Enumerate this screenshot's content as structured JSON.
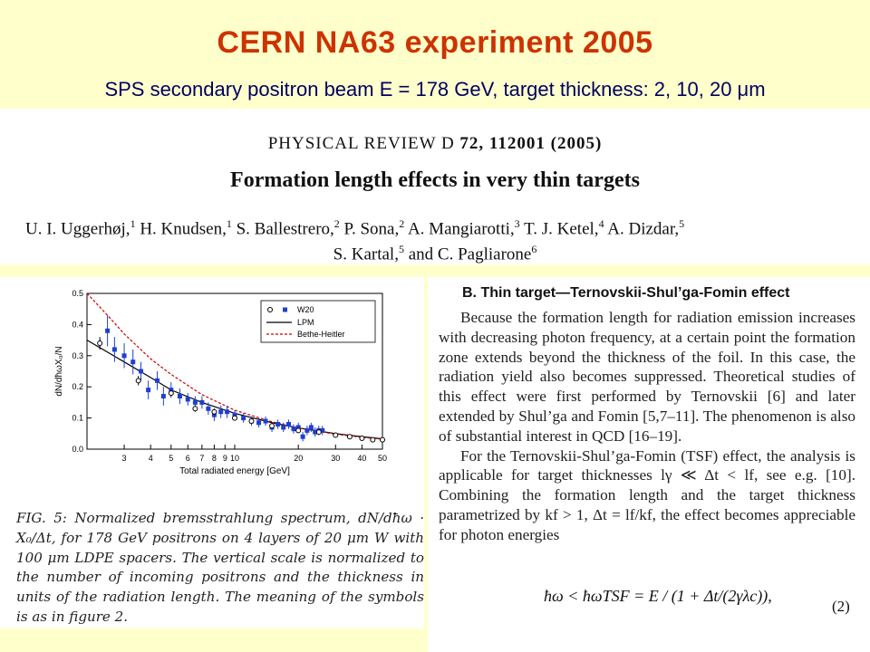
{
  "slide": {
    "title": "CERN  NA63  experiment  2005",
    "subtitle": "SPS secondary positron beam E = 178 GeV,  target thickness: 2, 10, 20 μm"
  },
  "paper": {
    "journal_name": "PHYSICAL REVIEW D",
    "journal_ref": "72, 112001 (2005)",
    "title": "Formation length effects in very thin targets",
    "authors_line1": [
      {
        "name": "U. I. Uggerhøj,",
        "sup": "1"
      },
      {
        "name": "H. Knudsen,",
        "sup": "1"
      },
      {
        "name": "S. Ballestrero,",
        "sup": "2"
      },
      {
        "name": "P. Sona,",
        "sup": "2"
      },
      {
        "name": "A. Mangiarotti,",
        "sup": "3"
      },
      {
        "name": "T. J. Ketel,",
        "sup": "4"
      },
      {
        "name": "A. Dizdar,",
        "sup": "5"
      }
    ],
    "authors_line2": [
      {
        "name": "S. Kartal,",
        "sup": "5"
      },
      {
        "name": "and C. Pagliarone",
        "sup": "6"
      }
    ]
  },
  "figure": {
    "caption": "FIG. 5:  Normalized bremsstrahlung spectrum, dN/dħω · X₀/Δt, for 178 GeV positrons on 4 layers of 20 μm W with 100 μm LDPE spacers.  The vertical scale is normalized to the number of incoming positrons and the thickness in units of the radiation length.  The meaning of the symbols is as in figure 2."
  },
  "chart_data": {
    "type": "scatter",
    "xlabel": "Total radiated energy [GeV]",
    "ylabel": "dN/dħωX₀/N",
    "x_scale": "log",
    "xlim": [
      2,
      50
    ],
    "ylim": [
      0,
      0.5
    ],
    "x_ticks": [
      3,
      4,
      5,
      6,
      7,
      8,
      9,
      10,
      20,
      30,
      40,
      50
    ],
    "y_ticks": [
      0.0,
      0.1,
      0.2,
      0.3,
      0.4,
      0.5
    ],
    "legend_position": "top-right",
    "legend": {
      "w20_label": "W20",
      "lpm_label": "LPM",
      "bh_label": "Bethe-Heitler"
    },
    "series": [
      {
        "name": "W20",
        "marker": "filled-square",
        "color": "#1f3fd0",
        "x": [
          2.5,
          2.7,
          3.0,
          3.3,
          3.6,
          3.9,
          4.3,
          4.6,
          5.0,
          5.5,
          6.0,
          6.5,
          7.0,
          7.5,
          8.0,
          8.6,
          9.2,
          10,
          11,
          12,
          13,
          14,
          15,
          16,
          17,
          18,
          19,
          20,
          21,
          22,
          23,
          24,
          25,
          26
        ],
        "y": [
          0.38,
          0.32,
          0.3,
          0.28,
          0.25,
          0.19,
          0.22,
          0.17,
          0.19,
          0.17,
          0.16,
          0.15,
          0.15,
          0.13,
          0.11,
          0.12,
          0.12,
          0.11,
          0.1,
          0.09,
          0.085,
          0.09,
          0.07,
          0.08,
          0.07,
          0.08,
          0.065,
          0.07,
          0.04,
          0.06,
          0.07,
          0.055,
          0.06,
          0.06
        ],
        "err": [
          0.05,
          0.04,
          0.04,
          0.04,
          0.03,
          0.03,
          0.03,
          0.03,
          0.025,
          0.025,
          0.02,
          0.02,
          0.02,
          0.02,
          0.02,
          0.02,
          0.02,
          0.015,
          0.015,
          0.015,
          0.015,
          0.015,
          0.015,
          0.015,
          0.015,
          0.015,
          0.015,
          0.015,
          0.015,
          0.015,
          0.015,
          0.015,
          0.015,
          0.015
        ]
      },
      {
        "name": "W20 (open)",
        "marker": "open-circle",
        "color": "#000000",
        "x": [
          2.3,
          3.5,
          5.0,
          6.5,
          8.0,
          10,
          12,
          15,
          20,
          25,
          30,
          35,
          40,
          45,
          50
        ],
        "y": [
          0.34,
          0.22,
          0.18,
          0.13,
          0.12,
          0.1,
          0.09,
          0.075,
          0.06,
          0.055,
          0.045,
          0.04,
          0.035,
          0.03,
          0.03
        ],
        "err": [
          0.02,
          0.015,
          0.01,
          0.01,
          0.01,
          0.008,
          0.008,
          0.007,
          0.006,
          0.005,
          0.005,
          0.005,
          0.005,
          0.005,
          0.005
        ]
      },
      {
        "name": "LPM",
        "style": "solid-line",
        "color": "#000000",
        "x": [
          2.0,
          3.0,
          4.0,
          5.0,
          7.0,
          10,
          15,
          20,
          30,
          40,
          50
        ],
        "y": [
          0.35,
          0.28,
          0.23,
          0.19,
          0.15,
          0.115,
          0.085,
          0.068,
          0.05,
          0.04,
          0.033
        ]
      },
      {
        "name": "Bethe-Heitler",
        "style": "dashed-line",
        "color": "#cc0000",
        "x": [
          2.0,
          2.5,
          3.0,
          4.0,
          5.0,
          7.0,
          10,
          15,
          20,
          30,
          40,
          50
        ],
        "y": [
          0.5,
          0.43,
          0.37,
          0.29,
          0.24,
          0.175,
          0.125,
          0.088,
          0.068,
          0.048,
          0.038,
          0.032
        ]
      }
    ]
  },
  "section": {
    "heading": "B. Thin target—Ternovskii-Shul’ga-Fomin effect",
    "para1": "Because the formation length for radiation emission increases with decreasing photon frequency, at a certain point the formation zone extends beyond the thickness of the foil. In this case, the radiation yield also becomes suppressed. Theoretical studies of this effect were first performed by Ternovskii [6] and later extended by Shul’ga and Fomin [5,7–11]. The phenomenon is also of substantial interest in QCD [16–19].",
    "para2": "For the Ternovskii-Shul’ga-Fomin (TSF) effect, the analysis is applicable for target thicknesses lγ ≪ Δt < lf, see e.g. [10]. Combining the formation length and the target thickness parametrized by kf > 1, Δt = lf/kf, the effect becomes appreciable for photon energies",
    "formula": "ħω < ħωTSF = E / (1 + Δt/(2γλc)),",
    "eq_number": "(2)"
  }
}
